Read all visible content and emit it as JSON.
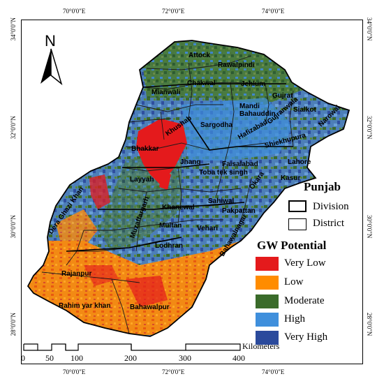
{
  "axes": {
    "lon_top": [
      "70°0'0\"E",
      "72°0'0\"E",
      "74°0'0\"E"
    ],
    "lon_bottom": [
      "70°0'0\"E",
      "72°0'0\"E",
      "74°0'0\"E"
    ],
    "lat_left": [
      "34°0'0\"N",
      "32°0'0\"N",
      "30°0'0\"N",
      "28°0'0\"N"
    ],
    "lat_right": [
      "34°0'0\"N",
      "32°0'0\"N",
      "30°0'0\"N",
      "28°0'0\"N"
    ]
  },
  "north_arrow": {
    "label": "N",
    "icon": "north-arrow-icon"
  },
  "districts": [
    "Attock",
    "Rawalpindi",
    "Chakwal",
    "Jehlum",
    "Mianwali",
    "Gujrat",
    "Mandi Bahauddin",
    "Sialkot",
    "Gujranwala",
    "Narowal",
    "Sargodha",
    "Khushab",
    "Hafizabad",
    "Shiekhupura",
    "Bhakkar",
    "Jhang",
    "Faisalabad",
    "Lahore",
    "Layyah",
    "Toba tek singh",
    "Okara",
    "Kasur",
    "Dera Ghazi Khan",
    "Muzaffargarh",
    "Khanewal",
    "Sahiwal",
    "Pakpattan",
    "Multan",
    "Vehari",
    "Lodhran",
    "Bahawalnagar",
    "Rajanpur",
    "Rahim yar khan",
    "Bahawalpur"
  ],
  "boundary_legend": {
    "title": "Punjab",
    "items": [
      "Division",
      "District"
    ]
  },
  "gw_legend": {
    "title": "GW Potential",
    "items": [
      {
        "label": "Very Low",
        "color": "#e41a1c"
      },
      {
        "label": "Low",
        "color": "#ff8c00"
      },
      {
        "label": "Moderate",
        "color": "#3a6b2a"
      },
      {
        "label": "High",
        "color": "#3f8fdc"
      },
      {
        "label": "Very High",
        "color": "#2b4a9c"
      }
    ]
  },
  "scale_bar": {
    "unit": "Kilometers",
    "ticks": [
      "0",
      "50",
      "100",
      "200",
      "300",
      "400"
    ]
  }
}
